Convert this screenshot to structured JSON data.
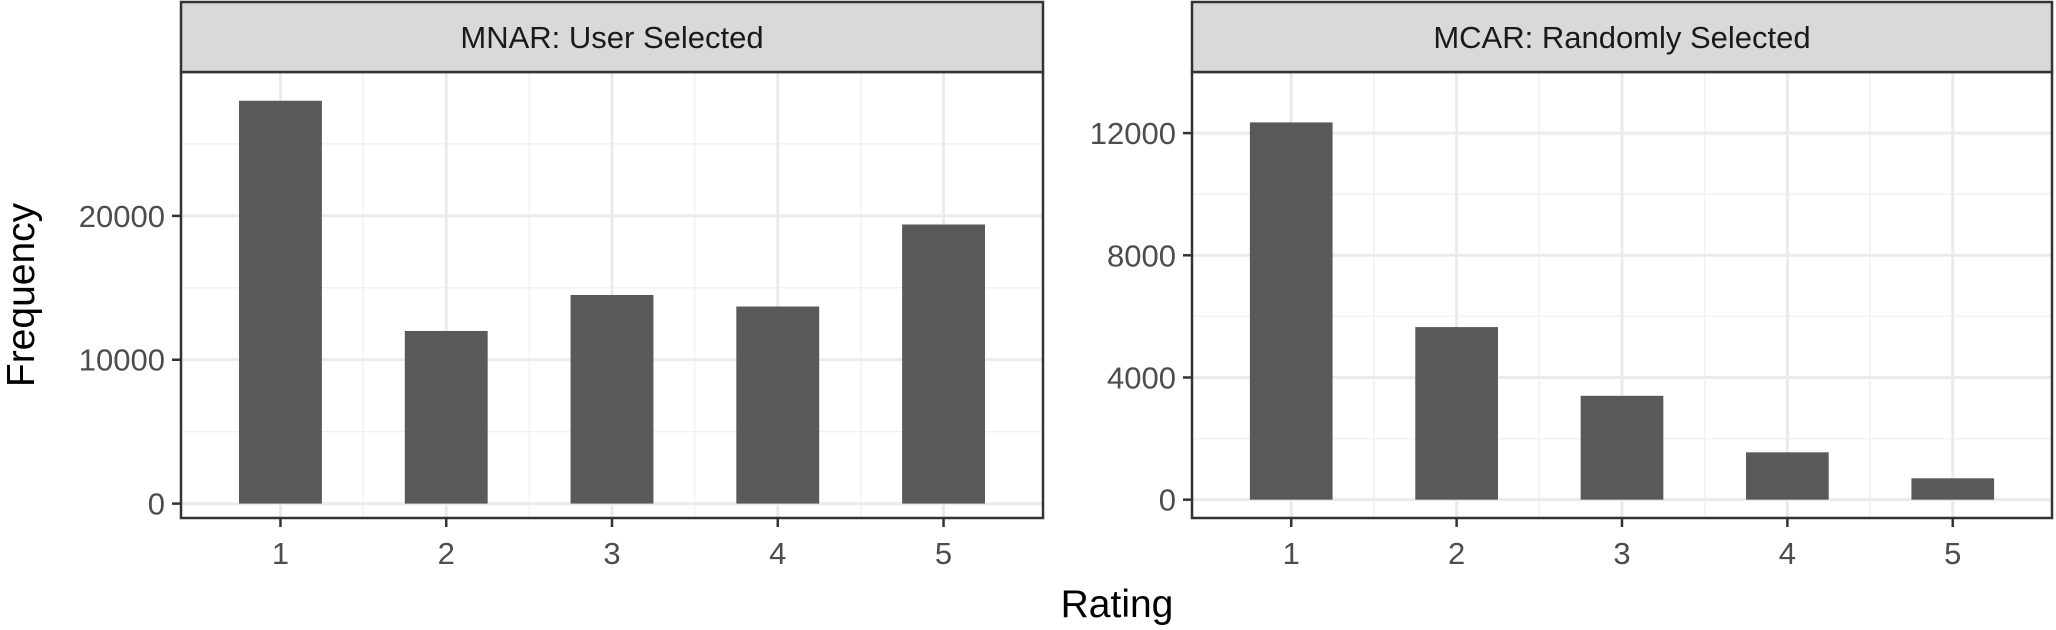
{
  "chart_data": {
    "type": "bar",
    "xlabel": "Rating",
    "ylabel": "Frequency",
    "grid": true,
    "panels": [
      {
        "title": "MNAR: User Selected",
        "categories": [
          "1",
          "2",
          "3",
          "4",
          "5"
        ],
        "values": [
          28000,
          12000,
          14500,
          13700,
          19400
        ],
        "ylim": [
          -1000,
          30000
        ],
        "yticks": [
          0,
          10000,
          20000
        ],
        "ytick_labels": [
          "0",
          "10000",
          "20000"
        ],
        "bar_color": "#595959"
      },
      {
        "title": "MCAR: Randomly Selected",
        "categories": [
          "1",
          "2",
          "3",
          "4",
          "5"
        ],
        "values": [
          12350,
          5650,
          3400,
          1550,
          700
        ],
        "ylim": [
          -600,
          14000
        ],
        "yticks": [
          0,
          4000,
          8000,
          12000
        ],
        "ytick_labels": [
          "0",
          "4000",
          "8000",
          "12000"
        ],
        "bar_color": "#595959"
      }
    ]
  },
  "colors": {
    "strip_fill": "#d9d9d9",
    "panel_border": "#333333",
    "grid_major": "#ebebeb",
    "grid_minor": "#f2f2f2",
    "tick_text": "#4d4d4d",
    "axis_title": "#000000"
  }
}
